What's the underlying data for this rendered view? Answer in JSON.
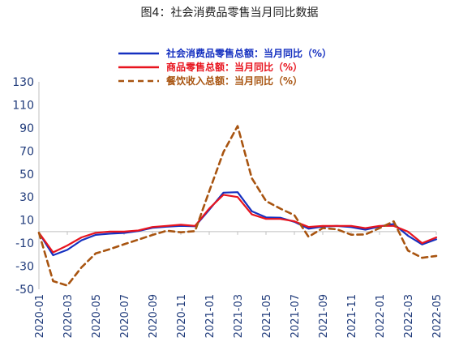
{
  "chart_data": {
    "type": "line",
    "title": "图4：社会消费品零售当月同比数据",
    "xlabel": "",
    "ylabel": "",
    "ylim": [
      -50,
      130
    ],
    "yticks": [
      -50,
      -30,
      -10,
      10,
      30,
      50,
      70,
      90,
      110,
      130
    ],
    "grid": false,
    "legend_position": "top-center",
    "x": [
      "2020-01",
      "2020-02",
      "2020-03",
      "2020-04",
      "2020-05",
      "2020-06",
      "2020-07",
      "2020-08",
      "2020-09",
      "2020-10",
      "2020-11",
      "2020-12",
      "2021-01",
      "2021-02",
      "2021-03",
      "2021-04",
      "2021-05",
      "2021-06",
      "2021-07",
      "2021-08",
      "2021-09",
      "2021-10",
      "2021-11",
      "2021-12",
      "2022-01",
      "2022-02",
      "2022-03",
      "2022-04",
      "2022-05"
    ],
    "xtick_labels": [
      "2020-01",
      "2020-03",
      "2020-05",
      "2020-07",
      "2020-09",
      "2020-11",
      "2021-01",
      "2021-03",
      "2021-05",
      "2021-07",
      "2021-09",
      "2021-11",
      "2022-01",
      "2022-03",
      "2022-05"
    ],
    "series": [
      {
        "name": "社会消费品零售总额：当月同比（%）",
        "color": "#1530c0",
        "style": "solid",
        "values": [
          -1,
          -20.5,
          -15.8,
          -7.5,
          -2.8,
          -1.8,
          -1.1,
          0.5,
          3.3,
          4.3,
          5,
          4.6,
          19,
          33.8,
          34.2,
          17.7,
          12.4,
          12.1,
          8.5,
          2.5,
          4.4,
          4.9,
          3.9,
          1.7,
          4.5,
          6.7,
          -3.5,
          -11.1,
          -6.7
        ]
      },
      {
        "name": "商品零售总额：当月同比（%）",
        "color": "#e8141e",
        "style": "solid",
        "values": [
          -1,
          -18,
          -12,
          -5,
          -1,
          0,
          0,
          1,
          4,
          5,
          6,
          5,
          20,
          32,
          30,
          15,
          11,
          11,
          9,
          4,
          5,
          5,
          5,
          3,
          5,
          5,
          0,
          -10,
          -5
        ]
      },
      {
        "name": "餐饮收入总额：当月同比（%）",
        "color": "#a85410",
        "style": "dashed",
        "values": [
          -1,
          -43,
          -46.8,
          -31,
          -18.9,
          -15.2,
          -11,
          -7,
          -2.9,
          0.8,
          -0.6,
          0.4,
          35,
          69,
          91.6,
          46.4,
          26.6,
          20,
          14.3,
          -4.5,
          3.1,
          2,
          -2.7,
          -2.5,
          3,
          8.9,
          -16.4,
          -22.7,
          -21.1
        ]
      }
    ]
  }
}
